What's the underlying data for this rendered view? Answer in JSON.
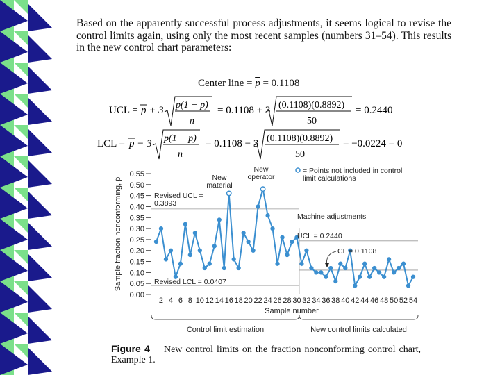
{
  "paragraph": "Based on the apparently successful process adjustments, it seems logical to revise the control limits again, using only the most recent samples (numbers 31–54). This results in the new control chart parameters:",
  "formulas": {
    "center_label": "Center line = ",
    "center_value": "= 0.1108",
    "ucl_label": "UCL = ",
    "ucl_mid": "= 0.1108 + 3",
    "ucl_num": "(0.1108)(0.8892)",
    "ucl_den": "50",
    "ucl_result": "= 0.2440",
    "lcl_label": "LCL = ",
    "lcl_mid": "= 0.1108 − 3",
    "lcl_num": "(0.1108)(0.8892)",
    "lcl_den": "50",
    "lcl_result": "= −0.0224 = 0",
    "p_bar_formula_num": "p(1 − p)",
    "n": "n"
  },
  "chart_data": {
    "type": "line",
    "ylabel": "Sample fraction nonconforming, p̂",
    "xlabel": "Sample number",
    "ylim": [
      0,
      0.55
    ],
    "y_ticks": [
      "0.55",
      "0.50",
      "0.45",
      "0.40",
      "0.35",
      "0.30",
      "0.25",
      "0.20",
      "0.15",
      "0.10",
      "0.05",
      "0.00"
    ],
    "x_ticks": [
      "2",
      "4",
      "6",
      "8",
      "10",
      "12",
      "14",
      "16",
      "18",
      "20",
      "22",
      "24",
      "26",
      "28",
      "30",
      "32",
      "34",
      "36",
      "38",
      "40",
      "42",
      "44",
      "46",
      "48",
      "50",
      "52",
      "54"
    ],
    "x": [
      1,
      2,
      3,
      4,
      5,
      6,
      7,
      8,
      9,
      10,
      11,
      12,
      13,
      14,
      15,
      16,
      17,
      18,
      19,
      20,
      21,
      22,
      23,
      24,
      25,
      26,
      27,
      28,
      29,
      30,
      31,
      32,
      33,
      34,
      35,
      36,
      37,
      38,
      39,
      40,
      41,
      42,
      43,
      44,
      45,
      46,
      47,
      48,
      49,
      50,
      51,
      52,
      53,
      54
    ],
    "values": [
      0.24,
      0.3,
      0.16,
      0.2,
      0.08,
      0.14,
      0.32,
      0.18,
      0.28,
      0.2,
      0.12,
      0.14,
      0.22,
      0.34,
      0.12,
      0.46,
      0.16,
      0.12,
      0.28,
      0.24,
      0.2,
      0.4,
      0.48,
      0.36,
      0.3,
      0.14,
      0.26,
      0.18,
      0.24,
      0.26,
      0.14,
      0.2,
      0.12,
      0.1,
      0.1,
      0.08,
      0.12,
      0.06,
      0.14,
      0.12,
      0.2,
      0.04,
      0.08,
      0.14,
      0.08,
      0.12,
      0.1,
      0.08,
      0.16,
      0.1,
      0.12,
      0.14,
      0.04,
      0.08
    ],
    "excluded_points": [
      16,
      23
    ],
    "lines": {
      "revised_ucl": 0.3893,
      "revised_lcl": 0.0407,
      "new_ucl": 0.244,
      "new_cl": 0.1108
    },
    "annotations": {
      "new_material": "New\nmaterial",
      "new_operator": "New\noperator",
      "legend": "= Points not included in control\nlimit calculations",
      "machine_adjustments": "Machine adjustments",
      "ucl_new": "UCL = 0.2440",
      "cl_new": "CL = 0.1108",
      "revised_ucl": "Revised UCL =\n0.3893",
      "revised_lcl": "Revised LCL = 0.0407",
      "bracket_left": "Control limit estimation",
      "bracket_right": "New control limits calculated"
    }
  },
  "caption": {
    "label": "Figure 4",
    "text": "New control limits on the fraction nonconforming control chart, Example 1."
  },
  "colors": {
    "line": "#3b8fd0",
    "decor_dark": "#1a1a8c",
    "decor_green": "#7be08a"
  }
}
